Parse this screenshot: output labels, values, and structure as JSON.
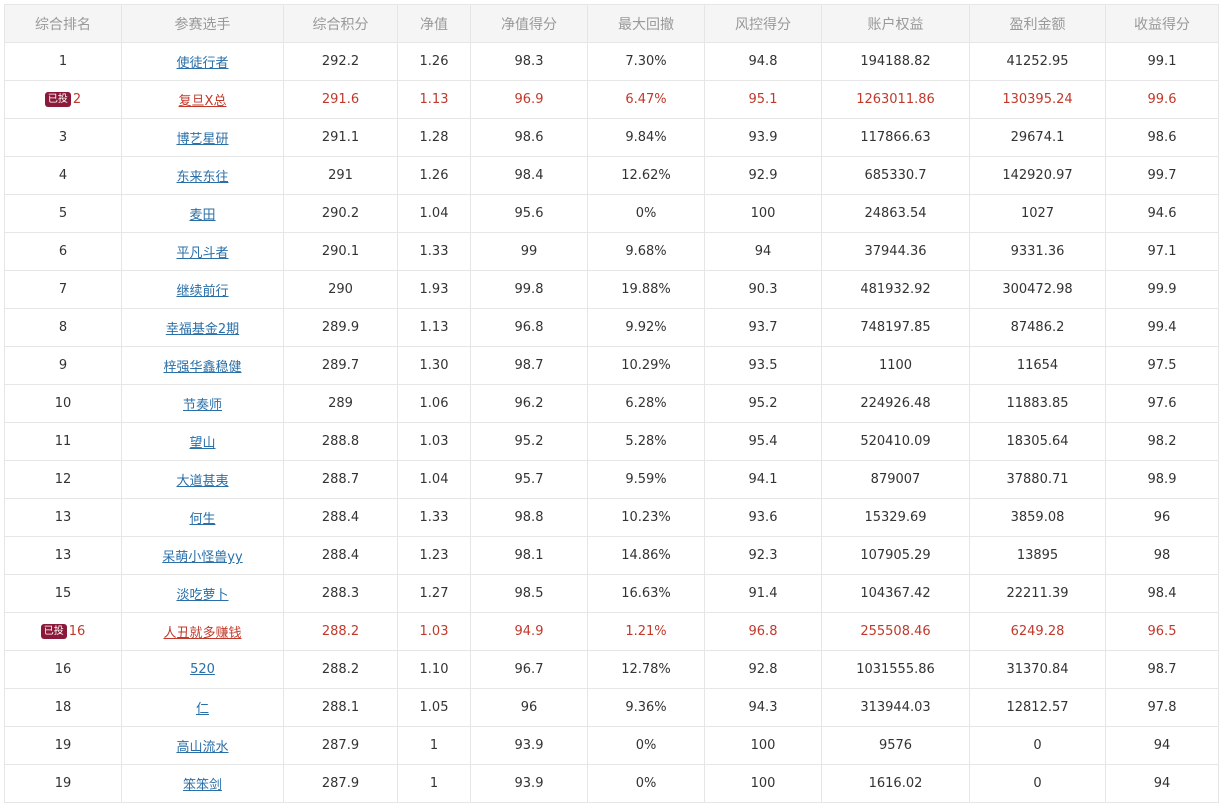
{
  "headers": [
    "综合排名",
    "参赛选手",
    "综合积分",
    "净值",
    "净值得分",
    "最大回撤",
    "风控得分",
    "账户权益",
    "盈利金额",
    "收益得分"
  ],
  "badge_label": "已投",
  "colors": {
    "header_bg": "#f5f5f5",
    "link": "#2a6fa8",
    "invested_text": "#c0392b",
    "badge_bg": "#8b1a3a"
  },
  "rows": [
    {
      "rank": "1",
      "invested": false,
      "name": "使徒行者",
      "score": "292.2",
      "nav": "1.26",
      "nav_score": "98.3",
      "max_dd": "7.30%",
      "risk_score": "94.8",
      "equity": "194188.82",
      "profit": "41252.95",
      "return_score": "99.1"
    },
    {
      "rank": "2",
      "invested": true,
      "name": "复旦X总",
      "score": "291.6",
      "nav": "1.13",
      "nav_score": "96.9",
      "max_dd": "6.47%",
      "risk_score": "95.1",
      "equity": "1263011.86",
      "profit": "130395.24",
      "return_score": "99.6"
    },
    {
      "rank": "3",
      "invested": false,
      "name": "博艺星研",
      "score": "291.1",
      "nav": "1.28",
      "nav_score": "98.6",
      "max_dd": "9.84%",
      "risk_score": "93.9",
      "equity": "117866.63",
      "profit": "29674.1",
      "return_score": "98.6"
    },
    {
      "rank": "4",
      "invested": false,
      "name": "东来东往",
      "score": "291",
      "nav": "1.26",
      "nav_score": "98.4",
      "max_dd": "12.62%",
      "risk_score": "92.9",
      "equity": "685330.7",
      "profit": "142920.97",
      "return_score": "99.7"
    },
    {
      "rank": "5",
      "invested": false,
      "name": "麦田",
      "score": "290.2",
      "nav": "1.04",
      "nav_score": "95.6",
      "max_dd": "0%",
      "risk_score": "100",
      "equity": "24863.54",
      "profit": "1027",
      "return_score": "94.6"
    },
    {
      "rank": "6",
      "invested": false,
      "name": "平凡斗者",
      "score": "290.1",
      "nav": "1.33",
      "nav_score": "99",
      "max_dd": "9.68%",
      "risk_score": "94",
      "equity": "37944.36",
      "profit": "9331.36",
      "return_score": "97.1"
    },
    {
      "rank": "7",
      "invested": false,
      "name": "继续前行",
      "score": "290",
      "nav": "1.93",
      "nav_score": "99.8",
      "max_dd": "19.88%",
      "risk_score": "90.3",
      "equity": "481932.92",
      "profit": "300472.98",
      "return_score": "99.9"
    },
    {
      "rank": "8",
      "invested": false,
      "name": "幸福基金2期",
      "score": "289.9",
      "nav": "1.13",
      "nav_score": "96.8",
      "max_dd": "9.92%",
      "risk_score": "93.7",
      "equity": "748197.85",
      "profit": "87486.2",
      "return_score": "99.4"
    },
    {
      "rank": "9",
      "invested": false,
      "name": "梓强华鑫稳健",
      "score": "289.7",
      "nav": "1.30",
      "nav_score": "98.7",
      "max_dd": "10.29%",
      "risk_score": "93.5",
      "equity": "1100",
      "profit": "11654",
      "return_score": "97.5"
    },
    {
      "rank": "10",
      "invested": false,
      "name": "节奏师",
      "score": "289",
      "nav": "1.06",
      "nav_score": "96.2",
      "max_dd": "6.28%",
      "risk_score": "95.2",
      "equity": "224926.48",
      "profit": "11883.85",
      "return_score": "97.6"
    },
    {
      "rank": "11",
      "invested": false,
      "name": "望山",
      "score": "288.8",
      "nav": "1.03",
      "nav_score": "95.2",
      "max_dd": "5.28%",
      "risk_score": "95.4",
      "equity": "520410.09",
      "profit": "18305.64",
      "return_score": "98.2"
    },
    {
      "rank": "12",
      "invested": false,
      "name": "大道甚夷",
      "score": "288.7",
      "nav": "1.04",
      "nav_score": "95.7",
      "max_dd": "9.59%",
      "risk_score": "94.1",
      "equity": "879007",
      "profit": "37880.71",
      "return_score": "98.9"
    },
    {
      "rank": "13",
      "invested": false,
      "name": "何生",
      "score": "288.4",
      "nav": "1.33",
      "nav_score": "98.8",
      "max_dd": "10.23%",
      "risk_score": "93.6",
      "equity": "15329.69",
      "profit": "3859.08",
      "return_score": "96"
    },
    {
      "rank": "13",
      "invested": false,
      "name": "呆萌小怪兽yy",
      "score": "288.4",
      "nav": "1.23",
      "nav_score": "98.1",
      "max_dd": "14.86%",
      "risk_score": "92.3",
      "equity": "107905.29",
      "profit": "13895",
      "return_score": "98"
    },
    {
      "rank": "15",
      "invested": false,
      "name": "淡吃萝卜",
      "score": "288.3",
      "nav": "1.27",
      "nav_score": "98.5",
      "max_dd": "16.63%",
      "risk_score": "91.4",
      "equity": "104367.42",
      "profit": "22211.39",
      "return_score": "98.4"
    },
    {
      "rank": "16",
      "invested": true,
      "name": "人丑就多赚钱",
      "score": "288.2",
      "nav": "1.03",
      "nav_score": "94.9",
      "max_dd": "1.21%",
      "risk_score": "96.8",
      "equity": "255508.46",
      "profit": "6249.28",
      "return_score": "96.5"
    },
    {
      "rank": "16",
      "invested": false,
      "name": "520",
      "score": "288.2",
      "nav": "1.10",
      "nav_score": "96.7",
      "max_dd": "12.78%",
      "risk_score": "92.8",
      "equity": "1031555.86",
      "profit": "31370.84",
      "return_score": "98.7"
    },
    {
      "rank": "18",
      "invested": false,
      "name": "仁",
      "score": "288.1",
      "nav": "1.05",
      "nav_score": "96",
      "max_dd": "9.36%",
      "risk_score": "94.3",
      "equity": "313944.03",
      "profit": "12812.57",
      "return_score": "97.8"
    },
    {
      "rank": "19",
      "invested": false,
      "name": "高山流水",
      "score": "287.9",
      "nav": "1",
      "nav_score": "93.9",
      "max_dd": "0%",
      "risk_score": "100",
      "equity": "9576",
      "profit": "0",
      "return_score": "94"
    },
    {
      "rank": "19",
      "invested": false,
      "name": "笨笨剑",
      "score": "287.9",
      "nav": "1",
      "nav_score": "93.9",
      "max_dd": "0%",
      "risk_score": "100",
      "equity": "1616.02",
      "profit": "0",
      "return_score": "94"
    }
  ]
}
